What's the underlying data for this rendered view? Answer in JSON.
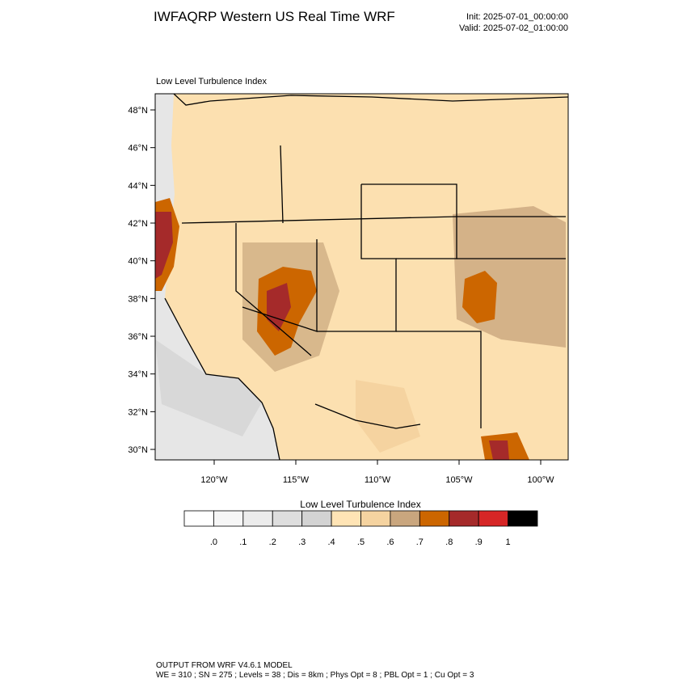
{
  "header": {
    "title": "IWFAQRP Western US Real Time WRF",
    "init": "Init: 2025-07-01_00:00:00",
    "valid": "Valid: 2025-07-02_01:00:00"
  },
  "map": {
    "subtitle": "Low Level Turbulence Index",
    "lat_ticks": [
      "48°N",
      "46°N",
      "44°N",
      "42°N",
      "40°N",
      "38°N",
      "36°N",
      "34°N",
      "32°N",
      "30°N"
    ],
    "lon_ticks": [
      "120°W",
      "115°W",
      "110°W",
      "105°W",
      "100°W"
    ]
  },
  "colorbar": {
    "title": "Low Level Turbulence Index",
    "colors": [
      "#ffffff",
      "#f6f6f6",
      "#ececec",
      "#dedede",
      "#d3d3d3",
      "#ffe4b5",
      "#f5d3a0",
      "#c9a67e",
      "#cc6600",
      "#a52a2a",
      "#d62626",
      "#000000"
    ],
    "labels": [
      ".0",
      ".1",
      ".2",
      ".3",
      ".4",
      ".5",
      ".6",
      ".7",
      ".8",
      ".9",
      "1"
    ]
  },
  "footer": {
    "line1": "OUTPUT FROM WRF V4.6.1 MODEL",
    "line2": "WE = 310 ; SN = 275 ; Levels = 38 ; Dis = 8km ; Phys Opt = 8 ; PBL Opt = 1 ; Cu Opt = 3"
  }
}
